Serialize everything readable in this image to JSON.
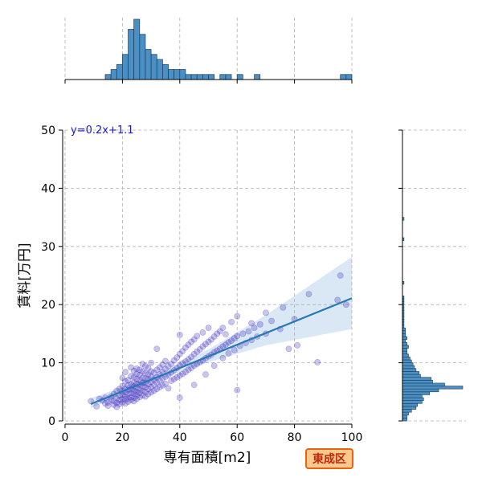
{
  "chart_data": {
    "type": "scatter",
    "title": "",
    "xlabel": "専有面積[m2]",
    "ylabel": "賃料[万円]",
    "xlim": [
      0,
      100
    ],
    "ylim": [
      0,
      50
    ],
    "xticks": [
      "0",
      "20",
      "40",
      "60",
      "80",
      "100"
    ],
    "yticks": [
      "0",
      "10",
      "20",
      "30",
      "40",
      "50"
    ],
    "grid": true,
    "grid_style": "dashed",
    "annotation": "y=0.2x+1.1",
    "district_label": "東成区",
    "regression": {
      "slope": 0.2,
      "intercept": 1.1,
      "x_range": [
        9,
        100
      ],
      "ci_band": [
        {
          "x": 9,
          "low": 2.2,
          "high": 3.9
        },
        {
          "x": 30,
          "low": 6.7,
          "high": 7.6
        },
        {
          "x": 50,
          "low": 10.1,
          "high": 12.3
        },
        {
          "x": 70,
          "low": 13.0,
          "high": 18.2
        },
        {
          "x": 100,
          "low": 15.8,
          "high": 28.2
        }
      ]
    },
    "scatter_color": "#3d2fc0",
    "line_color": "#2878b5",
    "band_color": "#c6dbef",
    "hist_color": "#4a90c4",
    "points": [
      [
        9,
        3.4
      ],
      [
        11,
        2.5
      ],
      [
        12,
        3.8
      ],
      [
        13,
        3.5
      ],
      [
        14,
        3.0
      ],
      [
        14,
        4.0
      ],
      [
        15,
        2.6
      ],
      [
        15,
        3.2
      ],
      [
        16,
        3.6
      ],
      [
        16,
        4.2
      ],
      [
        17,
        2.8
      ],
      [
        17,
        3.4
      ],
      [
        17,
        4.6
      ],
      [
        18,
        2.4
      ],
      [
        18,
        3.1
      ],
      [
        18,
        3.9
      ],
      [
        18,
        5.2
      ],
      [
        19,
        2.9
      ],
      [
        19,
        3.6
      ],
      [
        19,
        4.3
      ],
      [
        19,
        5.5
      ],
      [
        20,
        3.2
      ],
      [
        20,
        3.8
      ],
      [
        20,
        4.5
      ],
      [
        20,
        5.1
      ],
      [
        20,
        6.0
      ],
      [
        20,
        7.4
      ],
      [
        21,
        3.0
      ],
      [
        21,
        3.7
      ],
      [
        21,
        4.2
      ],
      [
        21,
        4.9
      ],
      [
        21,
        5.6
      ],
      [
        21,
        6.8
      ],
      [
        21,
        8.4
      ],
      [
        22,
        3.3
      ],
      [
        22,
        3.9
      ],
      [
        22,
        4.6
      ],
      [
        22,
        5.3
      ],
      [
        22,
        6.1
      ],
      [
        22,
        7.0
      ],
      [
        23,
        3.6
      ],
      [
        23,
        4.1
      ],
      [
        23,
        4.8
      ],
      [
        23,
        5.5
      ],
      [
        23,
        6.3
      ],
      [
        23,
        7.7
      ],
      [
        23,
        9.2
      ],
      [
        24,
        3.4
      ],
      [
        24,
        4.0
      ],
      [
        24,
        4.7
      ],
      [
        24,
        5.2
      ],
      [
        24,
        5.9
      ],
      [
        24,
        6.6
      ],
      [
        24,
        7.5
      ],
      [
        24,
        8.6
      ],
      [
        25,
        3.8
      ],
      [
        25,
        4.4
      ],
      [
        25,
        5.0
      ],
      [
        25,
        5.7
      ],
      [
        25,
        6.4
      ],
      [
        25,
        7.2
      ],
      [
        25,
        8.1
      ],
      [
        25,
        9.0
      ],
      [
        26,
        4.1
      ],
      [
        26,
        4.8
      ],
      [
        26,
        5.4
      ],
      [
        26,
        6.2
      ],
      [
        26,
        7.0
      ],
      [
        26,
        7.9
      ],
      [
        26,
        8.8
      ],
      [
        27,
        4.4
      ],
      [
        27,
        5.2
      ],
      [
        27,
        5.9
      ],
      [
        27,
        6.6
      ],
      [
        27,
        7.4
      ],
      [
        27,
        8.5
      ],
      [
        27,
        9.8
      ],
      [
        28,
        4.2
      ],
      [
        28,
        5.0
      ],
      [
        28,
        5.8
      ],
      [
        28,
        6.5
      ],
      [
        28,
        7.3
      ],
      [
        28,
        8.2
      ],
      [
        28,
        9.4
      ],
      [
        29,
        4.6
      ],
      [
        29,
        5.5
      ],
      [
        29,
        6.3
      ],
      [
        29,
        7.2
      ],
      [
        29,
        8.0
      ],
      [
        29,
        9.1
      ],
      [
        30,
        4.9
      ],
      [
        30,
        5.8
      ],
      [
        30,
        6.7
      ],
      [
        30,
        7.6
      ],
      [
        30,
        8.5
      ],
      [
        30,
        10.0
      ],
      [
        31,
        5.2
      ],
      [
        31,
        6.2
      ],
      [
        31,
        7.1
      ],
      [
        31,
        8.3
      ],
      [
        32,
        5.5
      ],
      [
        32,
        6.6
      ],
      [
        32,
        7.5
      ],
      [
        32,
        8.8
      ],
      [
        32,
        12.4
      ],
      [
        33,
        5.8
      ],
      [
        33,
        6.9
      ],
      [
        33,
        8.0
      ],
      [
        33,
        9.2
      ],
      [
        34,
        6.1
      ],
      [
        34,
        7.3
      ],
      [
        34,
        8.4
      ],
      [
        34,
        9.7
      ],
      [
        35,
        6.4
      ],
      [
        35,
        7.6
      ],
      [
        35,
        8.9
      ],
      [
        35,
        10.3
      ],
      [
        36,
        5.6
      ],
      [
        36,
        7.9
      ],
      [
        36,
        9.4
      ],
      [
        37,
        6.9
      ],
      [
        37,
        8.3
      ],
      [
        37,
        9.8
      ],
      [
        38,
        7.2
      ],
      [
        38,
        8.7
      ],
      [
        38,
        10.4
      ],
      [
        39,
        7.5
      ],
      [
        39,
        9.1
      ],
      [
        39,
        10.9
      ],
      [
        40,
        4.0
      ],
      [
        40,
        7.8
      ],
      [
        40,
        9.5
      ],
      [
        40,
        11.5
      ],
      [
        40,
        14.8
      ],
      [
        41,
        8.1
      ],
      [
        41,
        9.9
      ],
      [
        41,
        12.0
      ],
      [
        42,
        8.4
      ],
      [
        42,
        10.2
      ],
      [
        42,
        12.6
      ],
      [
        43,
        8.8
      ],
      [
        43,
        10.6
      ],
      [
        43,
        13.1
      ],
      [
        44,
        9.1
      ],
      [
        44,
        11.0
      ],
      [
        44,
        13.6
      ],
      [
        45,
        6.2
      ],
      [
        45,
        9.5
      ],
      [
        45,
        11.5
      ],
      [
        45,
        14.0
      ],
      [
        46,
        9.8
      ],
      [
        46,
        11.9
      ],
      [
        46,
        14.6
      ],
      [
        47,
        10.1
      ],
      [
        47,
        12.3
      ],
      [
        48,
        10.4
      ],
      [
        48,
        12.8
      ],
      [
        48,
        15.2
      ],
      [
        49,
        8.0
      ],
      [
        49,
        10.8
      ],
      [
        49,
        13.2
      ],
      [
        50,
        11.1
      ],
      [
        50,
        13.6
      ],
      [
        50,
        16.0
      ],
      [
        51,
        11.4
      ],
      [
        51,
        14.0
      ],
      [
        52,
        9.5
      ],
      [
        52,
        11.8
      ],
      [
        52,
        14.5
      ],
      [
        53,
        12.1
      ],
      [
        53,
        15.0
      ],
      [
        54,
        12.4
      ],
      [
        54,
        15.4
      ],
      [
        55,
        10.8
      ],
      [
        55,
        12.8
      ],
      [
        55,
        16.0
      ],
      [
        56,
        13.1
      ],
      [
        56,
        14.9
      ],
      [
        57,
        11.6
      ],
      [
        57,
        13.5
      ],
      [
        58,
        13.8
      ],
      [
        58,
        17.0
      ],
      [
        59,
        12.2
      ],
      [
        59,
        14.2
      ],
      [
        60,
        5.3
      ],
      [
        60,
        14.6
      ],
      [
        60,
        18.0
      ],
      [
        61,
        12.9
      ],
      [
        62,
        15.0
      ],
      [
        63,
        13.4
      ],
      [
        64,
        15.4
      ],
      [
        65,
        13.9
      ],
      [
        65,
        16.8
      ],
      [
        66,
        16.0
      ],
      [
        67,
        14.5
      ],
      [
        68,
        16.6
      ],
      [
        70,
        15.0
      ],
      [
        70,
        18.6
      ],
      [
        72,
        17.2
      ],
      [
        75,
        15.8
      ],
      [
        76,
        19.5
      ],
      [
        78,
        12.4
      ],
      [
        80,
        17.5
      ],
      [
        81,
        13.0
      ],
      [
        85,
        21.8
      ],
      [
        88,
        10.1
      ],
      [
        95,
        20.8
      ],
      [
        96,
        25.0
      ],
      [
        98,
        20.0
      ]
    ],
    "marginal_x_hist": {
      "bin_start": 0,
      "bin_width": 2,
      "counts": [
        0,
        0,
        0,
        0,
        0,
        0,
        0,
        1,
        2,
        3,
        5,
        10,
        12,
        9,
        6,
        5,
        4,
        3,
        2,
        2,
        2,
        1,
        1,
        1,
        1,
        1,
        0,
        1,
        1,
        0,
        1,
        0,
        0,
        1,
        0,
        0,
        0,
        0,
        0,
        0,
        0,
        0,
        0,
        0,
        0,
        0,
        0,
        0,
        1,
        1
      ]
    },
    "marginal_y_hist": {
      "bin_start": 0,
      "bin_width": 0.5,
      "counts": [
        3,
        3,
        4,
        6,
        9,
        10,
        13,
        14,
        13,
        18,
        24,
        40,
        28,
        20,
        19,
        12,
        11,
        9,
        8,
        7,
        6,
        5,
        4,
        3,
        3,
        4,
        3,
        2,
        3,
        2,
        2,
        2,
        1,
        1,
        1,
        1,
        1,
        1,
        1,
        1,
        1,
        1,
        1,
        0,
        0,
        0,
        0,
        1,
        0,
        0,
        0,
        0,
        0,
        0,
        0,
        0,
        0,
        0,
        0,
        0,
        0,
        0,
        1,
        0,
        0,
        0,
        0,
        0,
        0,
        1
      ]
    }
  }
}
